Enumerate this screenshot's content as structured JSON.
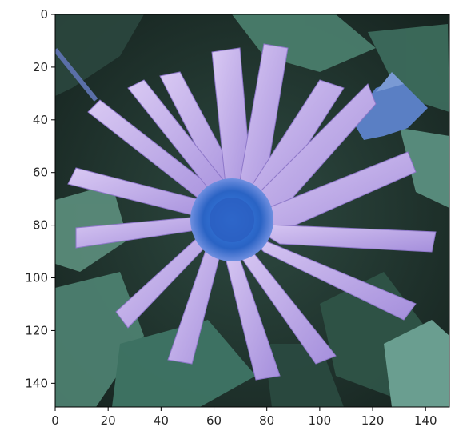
{
  "image_panel": {
    "subject": "flower-photo-false-color",
    "colors": {
      "background_dark": "#1c2a26",
      "foliage": "#3e6f5f",
      "foliage_light": "#6fa596",
      "petal": "#b9a4e6",
      "petal_light": "#dccdf4",
      "petal_shadow": "#8e78c9",
      "center": "#2f72d8",
      "center_dark": "#1d4fa6",
      "bud": "#5a7fc4"
    }
  },
  "axes": {
    "x": {
      "range": [
        0,
        149
      ],
      "ticks": [
        0,
        20,
        40,
        60,
        80,
        100,
        120,
        140
      ],
      "tick_labels": [
        "0",
        "20",
        "40",
        "60",
        "80",
        "100",
        "120",
        "140"
      ]
    },
    "y": {
      "range": [
        0,
        149
      ],
      "inverted": true,
      "ticks": [
        0,
        20,
        40,
        60,
        80,
        100,
        120,
        140
      ],
      "tick_labels": [
        "0",
        "20",
        "40",
        "60",
        "80",
        "100",
        "120",
        "140"
      ]
    }
  }
}
